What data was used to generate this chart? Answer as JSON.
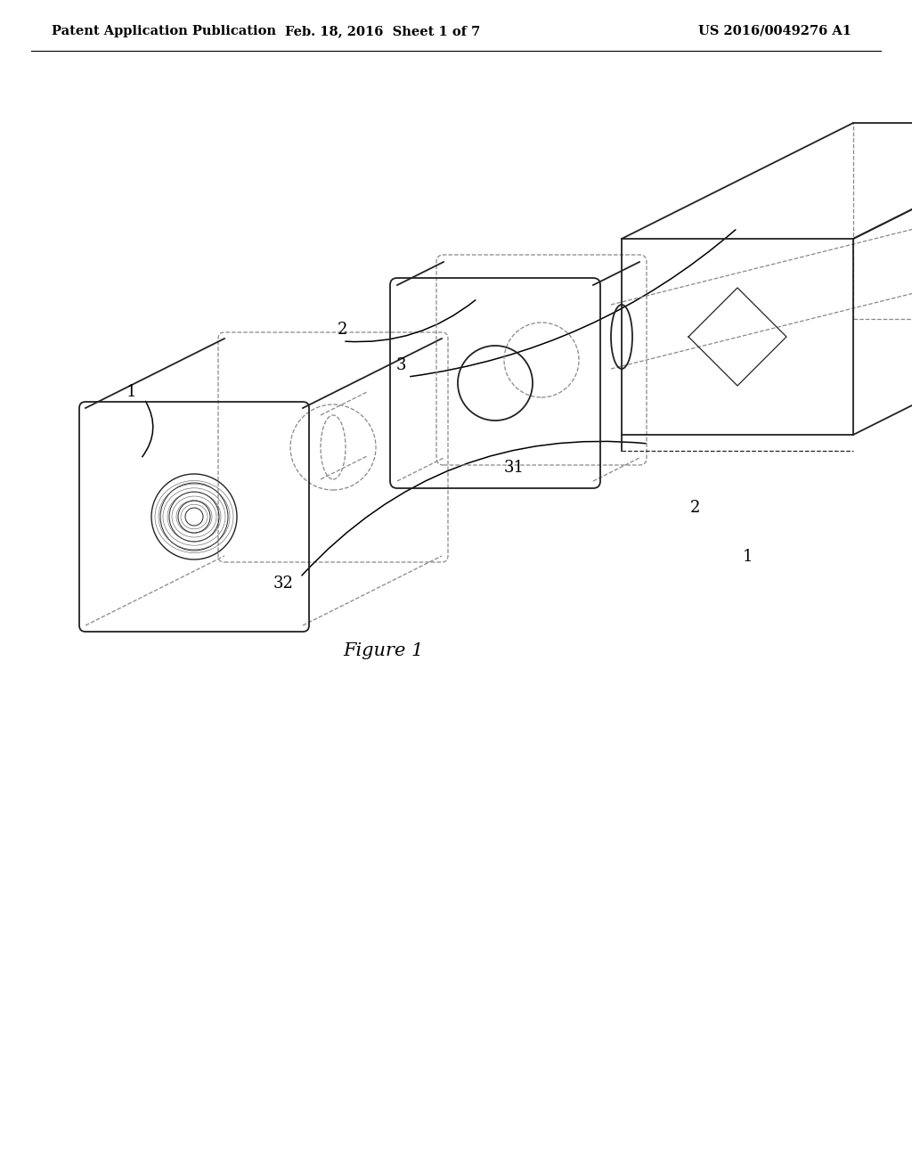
{
  "background_color": "#ffffff",
  "header_left": "Patent Application Publication",
  "header_mid": "Feb. 18, 2016  Sheet 1 of 7",
  "header_right": "US 2016/0049276 A1",
  "figure_label": "Figure 1",
  "line_color": "#222222",
  "dashed_color": "#888888",
  "text_color": "#000000",
  "header_fontsize": 10.5,
  "label_fontsize": 13,
  "figure_label_fontsize": 15,
  "figsize": [
    10.24,
    13.2
  ],
  "dpi": 100
}
